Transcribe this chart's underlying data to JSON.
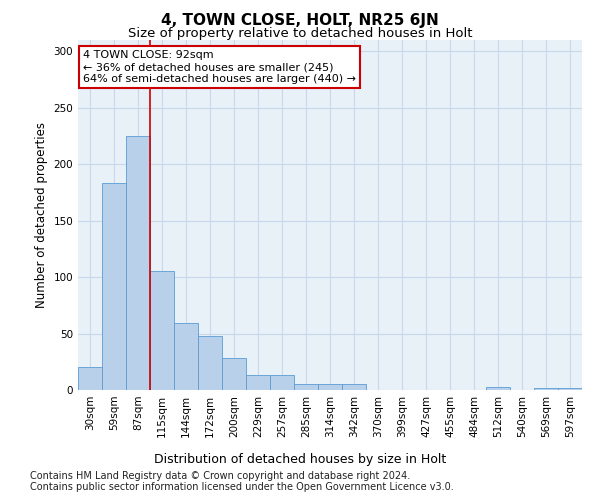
{
  "title": "4, TOWN CLOSE, HOLT, NR25 6JN",
  "subtitle": "Size of property relative to detached houses in Holt",
  "xlabel": "Distribution of detached houses by size in Holt",
  "ylabel": "Number of detached properties",
  "footnote1": "Contains HM Land Registry data © Crown copyright and database right 2024.",
  "footnote2": "Contains public sector information licensed under the Open Government Licence v3.0.",
  "bin_labels": [
    "30sqm",
    "59sqm",
    "87sqm",
    "115sqm",
    "144sqm",
    "172sqm",
    "200sqm",
    "229sqm",
    "257sqm",
    "285sqm",
    "314sqm",
    "342sqm",
    "370sqm",
    "399sqm",
    "427sqm",
    "455sqm",
    "484sqm",
    "512sqm",
    "540sqm",
    "569sqm",
    "597sqm"
  ],
  "bar_values": [
    20,
    183,
    225,
    105,
    59,
    48,
    28,
    13,
    13,
    5,
    5,
    5,
    0,
    0,
    0,
    0,
    0,
    3,
    0,
    2,
    2
  ],
  "bar_color": "#b8d0ea",
  "bar_edge_color": "#5b9bd5",
  "vline_color": "#cc0000",
  "vline_x": 2.5,
  "annotation_text": "4 TOWN CLOSE: 92sqm\n← 36% of detached houses are smaller (245)\n64% of semi-detached houses are larger (440) →",
  "annotation_box_color": "#ffffff",
  "annotation_box_edge": "#cc0000",
  "ylim": [
    0,
    310
  ],
  "yticks": [
    0,
    50,
    100,
    150,
    200,
    250,
    300
  ],
  "grid_color": "#c8d8e8",
  "bg_color": "#e8f0f8",
  "title_fontsize": 11,
  "subtitle_fontsize": 9.5,
  "ylabel_fontsize": 8.5,
  "xlabel_fontsize": 9,
  "tick_fontsize": 7.5,
  "annotation_fontsize": 8,
  "footnote_fontsize": 7
}
